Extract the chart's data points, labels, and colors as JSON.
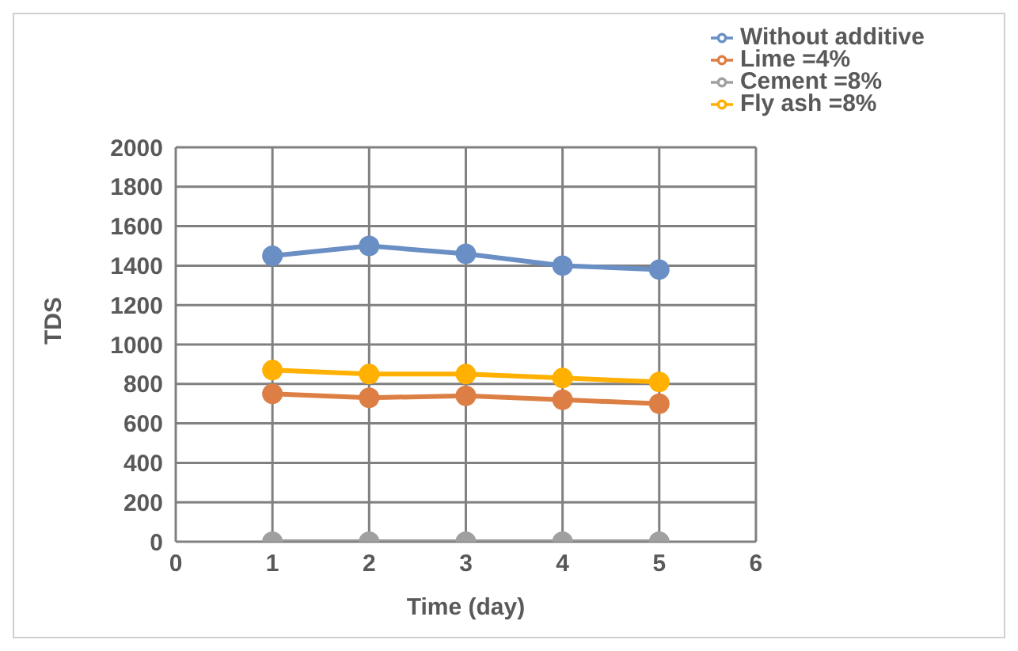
{
  "chart_data": {
    "type": "line",
    "xlabel": "Time (day)",
    "ylabel": "TDS",
    "x": [
      1,
      2,
      3,
      4,
      5
    ],
    "series": [
      {
        "name": "Without additive",
        "color": "#6a8fc4",
        "values": [
          1450,
          1500,
          1460,
          1400,
          1380
        ]
      },
      {
        "name": "Lime =4%",
        "color": "#dd7f45",
        "values": [
          750,
          730,
          740,
          720,
          700
        ]
      },
      {
        "name": "Cement =8%",
        "color": "#a0a0a0",
        "values": [
          0,
          0,
          0,
          0,
          0
        ]
      },
      {
        "name": "Fly ash =8%",
        "color": "#ffb000",
        "values": [
          870,
          850,
          850,
          830,
          810
        ]
      }
    ],
    "xlim": [
      0,
      6
    ],
    "xticks": [
      0,
      1,
      2,
      3,
      4,
      5,
      6
    ],
    "ylim": [
      0,
      2000
    ],
    "yticks": [
      0,
      200,
      400,
      600,
      800,
      1000,
      1200,
      1400,
      1600,
      1800,
      2000
    ],
    "grid": true,
    "legend": "top right",
    "marker": "circle",
    "line_style": "solid"
  }
}
